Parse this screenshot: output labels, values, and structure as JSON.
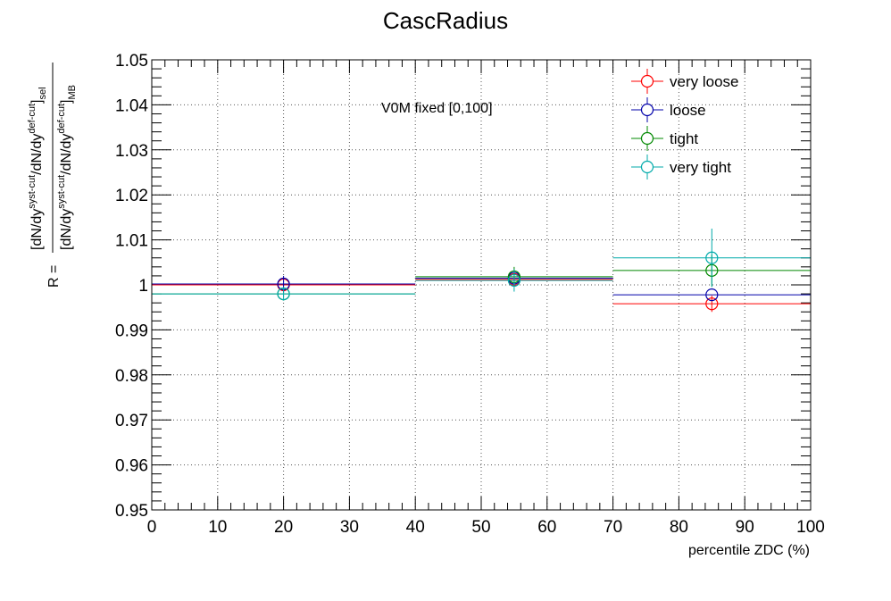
{
  "chart_data": {
    "type": "scatter",
    "title": "CascRadius",
    "xlabel": "percentile ZDC (%)",
    "ylabel": {
      "prefix": "R =",
      "numerator": "[dN/dy^{syst-cut}/dN/dy^{def-cut}]_{sel}",
      "denominator": "[dN/dy^{syst-cut}/dN/dy^{def-cut}]_{MB}"
    },
    "annotation": "V0M fixed [0,100]",
    "xlim": [
      0,
      100
    ],
    "ylim": [
      0.95,
      1.05
    ],
    "x_ticks": [
      0,
      10,
      20,
      30,
      40,
      50,
      60,
      70,
      80,
      90,
      100
    ],
    "x_tick_labels": [
      "0",
      "10",
      "20",
      "30",
      "40",
      "50",
      "60",
      "70",
      "80",
      "90",
      "100"
    ],
    "y_ticks": [
      0.95,
      0.96,
      0.97,
      0.98,
      0.99,
      1.0,
      1.01,
      1.02,
      1.03,
      1.04,
      1.05
    ],
    "y_tick_labels": [
      "0.95",
      "0.96",
      "0.97",
      "0.98",
      "0.99",
      "1",
      "1.01",
      "1.02",
      "1.03",
      "1.04",
      "1.05"
    ],
    "grid": true,
    "legend_position": "top-right",
    "bins": [
      {
        "low": 0,
        "high": 40,
        "center": 20
      },
      {
        "low": 40,
        "high": 70,
        "center": 55
      },
      {
        "low": 70,
        "high": 100,
        "center": 85
      }
    ],
    "series": [
      {
        "name": "very loose",
        "color": "#ff0000",
        "values": [
          1.0,
          1.0012,
          0.9958
        ],
        "errors": [
          0.0,
          0.0,
          0.0018
        ]
      },
      {
        "name": "loose",
        "color": "#0000aa",
        "values": [
          1.0002,
          1.0015,
          0.9978
        ],
        "errors": [
          0.0018,
          0.0,
          0.0
        ]
      },
      {
        "name": "tight",
        "color": "#008800",
        "values": [
          0.998,
          1.0018,
          1.0032
        ],
        "errors": [
          0.0,
          0.0022,
          0.0035
        ]
      },
      {
        "name": "very tight",
        "color": "#00aaaa",
        "values": [
          0.998,
          1.001,
          1.006
        ],
        "errors": [
          0.0015,
          0.0025,
          0.0065
        ]
      }
    ]
  }
}
